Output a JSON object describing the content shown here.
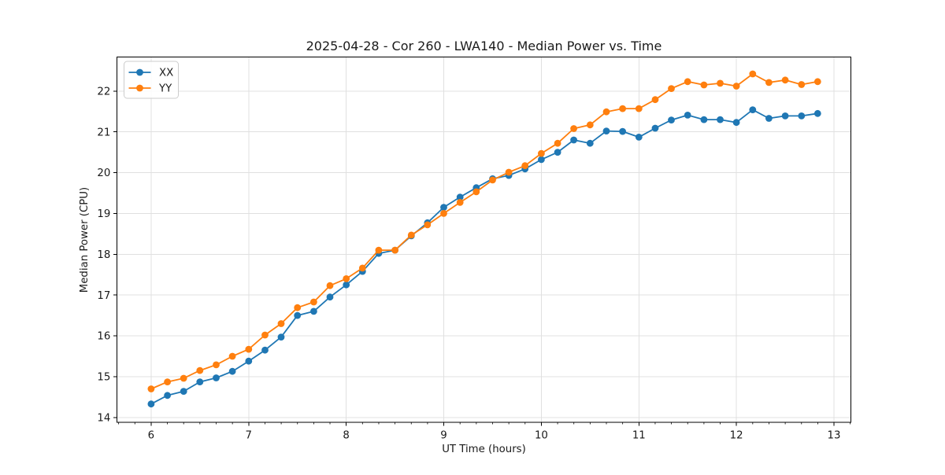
{
  "chart_data": {
    "type": "line",
    "title": "2025-04-28 - Cor 260 - LWA140 - Median Power vs. Time",
    "xlabel": "UT Time (hours)",
    "ylabel": "Median Power (CPU)",
    "xlim": [
      5.648,
      13.175
    ],
    "ylim": [
      13.88,
      22.83
    ],
    "xticks": [
      6,
      7,
      8,
      9,
      10,
      11,
      12,
      13
    ],
    "yticks": [
      14,
      15,
      16,
      17,
      18,
      19,
      20,
      21,
      22
    ],
    "x_minor_tick_step": 0.16667,
    "grid": true,
    "legend_position": "upper-left",
    "background_color": "#ffffff",
    "grid_color": "#e0e0e0",
    "spine_color": "#000000",
    "x": [
      6,
      6.167,
      6.333,
      6.5,
      6.667,
      6.833,
      7,
      7.167,
      7.333,
      7.5,
      7.667,
      7.833,
      8,
      8.167,
      8.333,
      8.5,
      8.667,
      8.833,
      9,
      9.167,
      9.333,
      9.5,
      9.667,
      9.833,
      10,
      10.167,
      10.333,
      10.5,
      10.667,
      10.833,
      11,
      11.167,
      11.333,
      11.5,
      11.667,
      11.833,
      12,
      12.167,
      12.333,
      12.5,
      12.667,
      12.833
    ],
    "series": [
      {
        "name": "XX",
        "color": "#1f77b4",
        "values": [
          14.33,
          14.54,
          14.64,
          14.87,
          14.97,
          15.13,
          15.38,
          15.65,
          15.97,
          16.5,
          16.6,
          16.95,
          17.25,
          17.58,
          18.02,
          18.1,
          18.45,
          18.77,
          19.15,
          19.4,
          19.63,
          19.85,
          19.93,
          20.09,
          20.32,
          20.5,
          20.8,
          20.72,
          21.02,
          21.01,
          20.87,
          21.09,
          21.29,
          21.41,
          21.3,
          21.3,
          21.23,
          21.54,
          21.33,
          21.39,
          21.39,
          21.45
        ]
      },
      {
        "name": "YY",
        "color": "#ff7f0e",
        "values": [
          14.7,
          14.87,
          14.96,
          15.15,
          15.29,
          15.5,
          15.67,
          16.02,
          16.3,
          16.69,
          16.83,
          17.23,
          17.4,
          17.66,
          18.1,
          18.1,
          18.47,
          18.72,
          19.0,
          19.27,
          19.53,
          19.82,
          20.01,
          20.17,
          20.47,
          20.72,
          21.08,
          21.17,
          21.49,
          21.57,
          21.57,
          21.79,
          22.06,
          22.23,
          22.15,
          22.19,
          22.12,
          22.42,
          22.21,
          22.27,
          22.16,
          22.23
        ]
      }
    ]
  }
}
